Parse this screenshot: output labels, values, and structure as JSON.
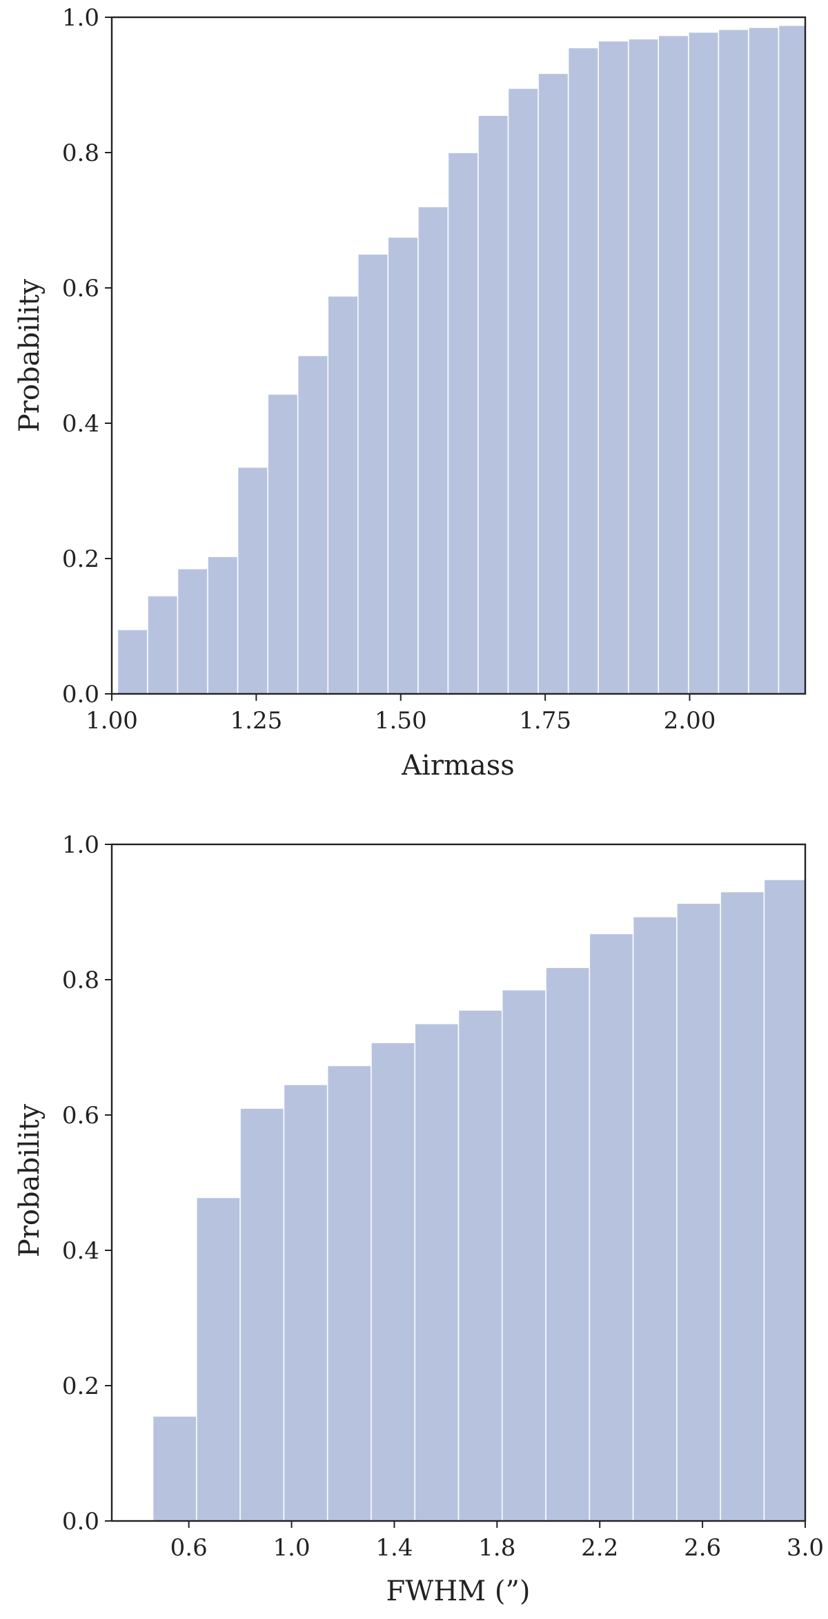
{
  "chart_data": [
    {
      "type": "bar",
      "subtype": "cumulative-histogram",
      "xlabel": "Airmass",
      "ylabel": "Probability",
      "xlim": [
        1.0,
        2.2
      ],
      "ylim": [
        0.0,
        1.0
      ],
      "x_ticks": [
        1.0,
        1.25,
        1.5,
        1.75,
        2.0
      ],
      "x_tick_labels": [
        "1.00",
        "1.25",
        "1.50",
        "1.75",
        "2.00"
      ],
      "y_ticks": [
        0.0,
        0.2,
        0.4,
        0.6,
        0.8,
        1.0
      ],
      "y_tick_labels": [
        "0.0",
        "0.2",
        "0.4",
        "0.6",
        "0.8",
        "1.0"
      ],
      "bin_edges": [
        1.01,
        1.062,
        1.114,
        1.166,
        1.218,
        1.27,
        1.322,
        1.374,
        1.426,
        1.478,
        1.53,
        1.582,
        1.634,
        1.686,
        1.738,
        1.79,
        1.842,
        1.894,
        1.946,
        1.998,
        2.05,
        2.102,
        2.154,
        2.206
      ],
      "values": [
        0.095,
        0.145,
        0.185,
        0.203,
        0.335,
        0.443,
        0.5,
        0.588,
        0.65,
        0.675,
        0.72,
        0.8,
        0.855,
        0.895,
        0.917,
        0.955,
        0.965,
        0.968,
        0.973,
        0.978,
        0.982,
        0.985,
        0.988
      ],
      "bar_color": "#b7c3de",
      "grid": false
    },
    {
      "type": "bar",
      "subtype": "cumulative-histogram",
      "xlabel": "FWHM (”)",
      "ylabel": "Probability",
      "xlim": [
        0.3,
        3.0
      ],
      "ylim": [
        0.0,
        1.0
      ],
      "x_ticks": [
        0.6,
        1.0,
        1.4,
        1.8,
        2.2,
        2.6,
        3.0
      ],
      "x_tick_labels": [
        "0.6",
        "1.0",
        "1.4",
        "1.8",
        "2.2",
        "2.6",
        "3.0"
      ],
      "y_ticks": [
        0.0,
        0.2,
        0.4,
        0.6,
        0.8,
        1.0
      ],
      "y_tick_labels": [
        "0.0",
        "0.2",
        "0.4",
        "0.6",
        "0.8",
        "1.0"
      ],
      "bin_edges": [
        0.46,
        0.63,
        0.8,
        0.97,
        1.14,
        1.31,
        1.48,
        1.65,
        1.82,
        1.99,
        2.16,
        2.33,
        2.5,
        2.67,
        2.84,
        3.0
      ],
      "values": [
        0.155,
        0.478,
        0.61,
        0.645,
        0.673,
        0.707,
        0.735,
        0.755,
        0.785,
        0.818,
        0.868,
        0.893,
        0.913,
        0.93,
        0.948
      ],
      "bar_color": "#b7c3de",
      "grid": false
    }
  ]
}
